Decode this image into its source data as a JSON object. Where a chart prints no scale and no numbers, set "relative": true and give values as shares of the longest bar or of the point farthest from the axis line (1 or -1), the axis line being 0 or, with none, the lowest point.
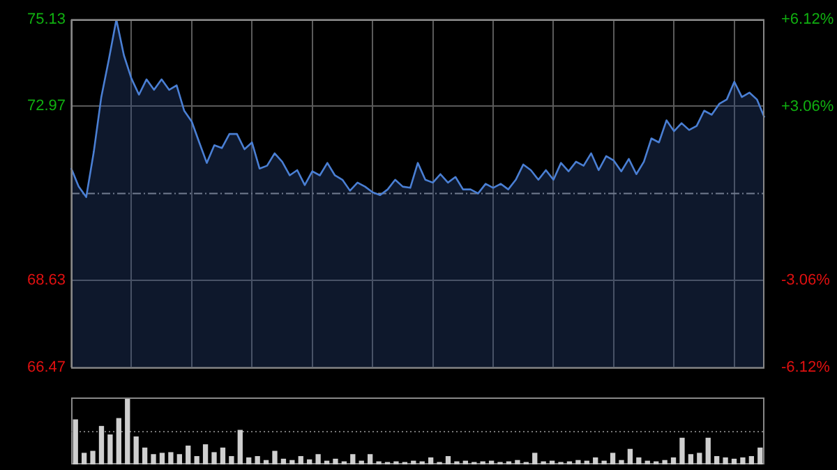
{
  "chart_data": [
    {
      "type": "area",
      "categories": [
        null,
        null,
        null,
        null,
        null,
        null,
        null,
        null,
        null,
        null,
        null,
        null,
        null,
        null,
        null,
        null,
        null,
        null,
        null,
        null,
        null,
        null,
        null,
        null,
        null,
        null,
        null,
        null,
        null,
        null,
        null,
        null,
        null,
        null,
        null,
        null,
        null,
        null,
        null,
        null,
        null,
        null,
        null,
        null,
        null,
        null,
        null,
        null,
        null,
        null,
        null,
        null,
        null,
        null,
        null,
        null,
        null,
        null,
        null,
        null,
        null,
        null,
        null,
        null,
        null,
        null,
        null,
        null,
        null,
        null,
        null,
        null,
        null,
        null,
        null,
        null,
        null,
        null,
        null,
        null,
        null,
        null,
        null,
        null,
        null,
        null,
        null,
        null,
        null,
        null,
        null,
        null,
        null
      ],
      "values": [
        71.43,
        70.97,
        70.71,
        71.83,
        73.2,
        74.13,
        75.13,
        74.24,
        73.66,
        73.26,
        73.64,
        73.38,
        73.64,
        73.38,
        73.49,
        72.86,
        72.59,
        72.07,
        71.56,
        72.0,
        71.93,
        72.28,
        72.28,
        71.9,
        72.07,
        71.42,
        71.49,
        71.8,
        71.59,
        71.25,
        71.38,
        71.01,
        71.35,
        71.25,
        71.56,
        71.25,
        71.14,
        70.87,
        71.07,
        70.97,
        70.83,
        70.76,
        70.9,
        71.14,
        70.97,
        70.94,
        71.56,
        71.14,
        71.07,
        71.28,
        71.07,
        71.21,
        70.9,
        70.9,
        70.8,
        71.04,
        70.94,
        71.04,
        70.9,
        71.14,
        71.52,
        71.38,
        71.14,
        71.38,
        71.14,
        71.56,
        71.35,
        71.59,
        71.49,
        71.8,
        71.38,
        71.73,
        71.62,
        71.35,
        71.66,
        71.28,
        71.59,
        72.17,
        72.07,
        72.62,
        72.35,
        72.55,
        72.38,
        72.48,
        72.86,
        72.76,
        73.03,
        73.14,
        73.58,
        73.2,
        73.31,
        73.14,
        72.69
      ],
      "color": "#4a7fd4",
      "marker": "none",
      "ylim": [
        66.47,
        75.13
      ],
      "yticks": [
        66.47,
        68.63,
        72.97,
        75.13
      ],
      "y2lim": [
        -6.12,
        6.12
      ],
      "y2ticks": [
        {
          "value": -6.12,
          "label": "-6.12%"
        },
        {
          "value": -3.06,
          "label": "-3.06%"
        },
        {
          "value": 3.06,
          "label": "+3.06%"
        },
        {
          "value": 6.12,
          "label": "+6.12%"
        }
      ],
      "ref_lines": [
        {
          "axis": "y",
          "value": 70.8,
          "line_style": "dashed"
        }
      ],
      "grid": true
    },
    {
      "type": "bar",
      "relative": true,
      "color": "#cfcfcf",
      "ref_lines": [
        {
          "axis": "y",
          "value": 0.5,
          "line_style": "dotted",
          "color": "#777777"
        }
      ],
      "categories": [
        null,
        null,
        null,
        null,
        null,
        null,
        null,
        null,
        null,
        null,
        null,
        null,
        null,
        null,
        null,
        null,
        null,
        null,
        null,
        null,
        null,
        null,
        null,
        null,
        null,
        null,
        null,
        null,
        null,
        null,
        null,
        null,
        null,
        null,
        null,
        null,
        null,
        null,
        null,
        null,
        null,
        null,
        null,
        null,
        null,
        null,
        null,
        null,
        null,
        null,
        null,
        null,
        null,
        null,
        null,
        null,
        null,
        null,
        null,
        null,
        null,
        null,
        null,
        null,
        null,
        null,
        null,
        null,
        null,
        null,
        null,
        null,
        null,
        null,
        null,
        null,
        null,
        null,
        null,
        null
      ],
      "values": [
        0.68,
        0.17,
        0.2,
        0.58,
        0.45,
        0.7,
        1.0,
        0.42,
        0.25,
        0.15,
        0.17,
        0.18,
        0.15,
        0.28,
        0.12,
        0.3,
        0.18,
        0.25,
        0.12,
        0.52,
        0.1,
        0.12,
        0.06,
        0.2,
        0.08,
        0.06,
        0.12,
        0.07,
        0.15,
        0.05,
        0.08,
        0.04,
        0.15,
        0.05,
        0.15,
        0.04,
        0.03,
        0.04,
        0.03,
        0.05,
        0.04,
        0.1,
        0.03,
        0.12,
        0.04,
        0.05,
        0.03,
        0.04,
        0.05,
        0.03,
        0.04,
        0.06,
        0.03,
        0.17,
        0.04,
        0.05,
        0.03,
        0.04,
        0.06,
        0.05,
        0.1,
        0.05,
        0.17,
        0.06,
        0.23,
        0.1,
        0.05,
        0.04,
        0.06,
        0.1,
        0.4,
        0.15,
        0.17,
        0.4,
        0.12,
        0.1,
        0.08,
        0.1,
        0.12,
        0.25
      ]
    }
  ]
}
